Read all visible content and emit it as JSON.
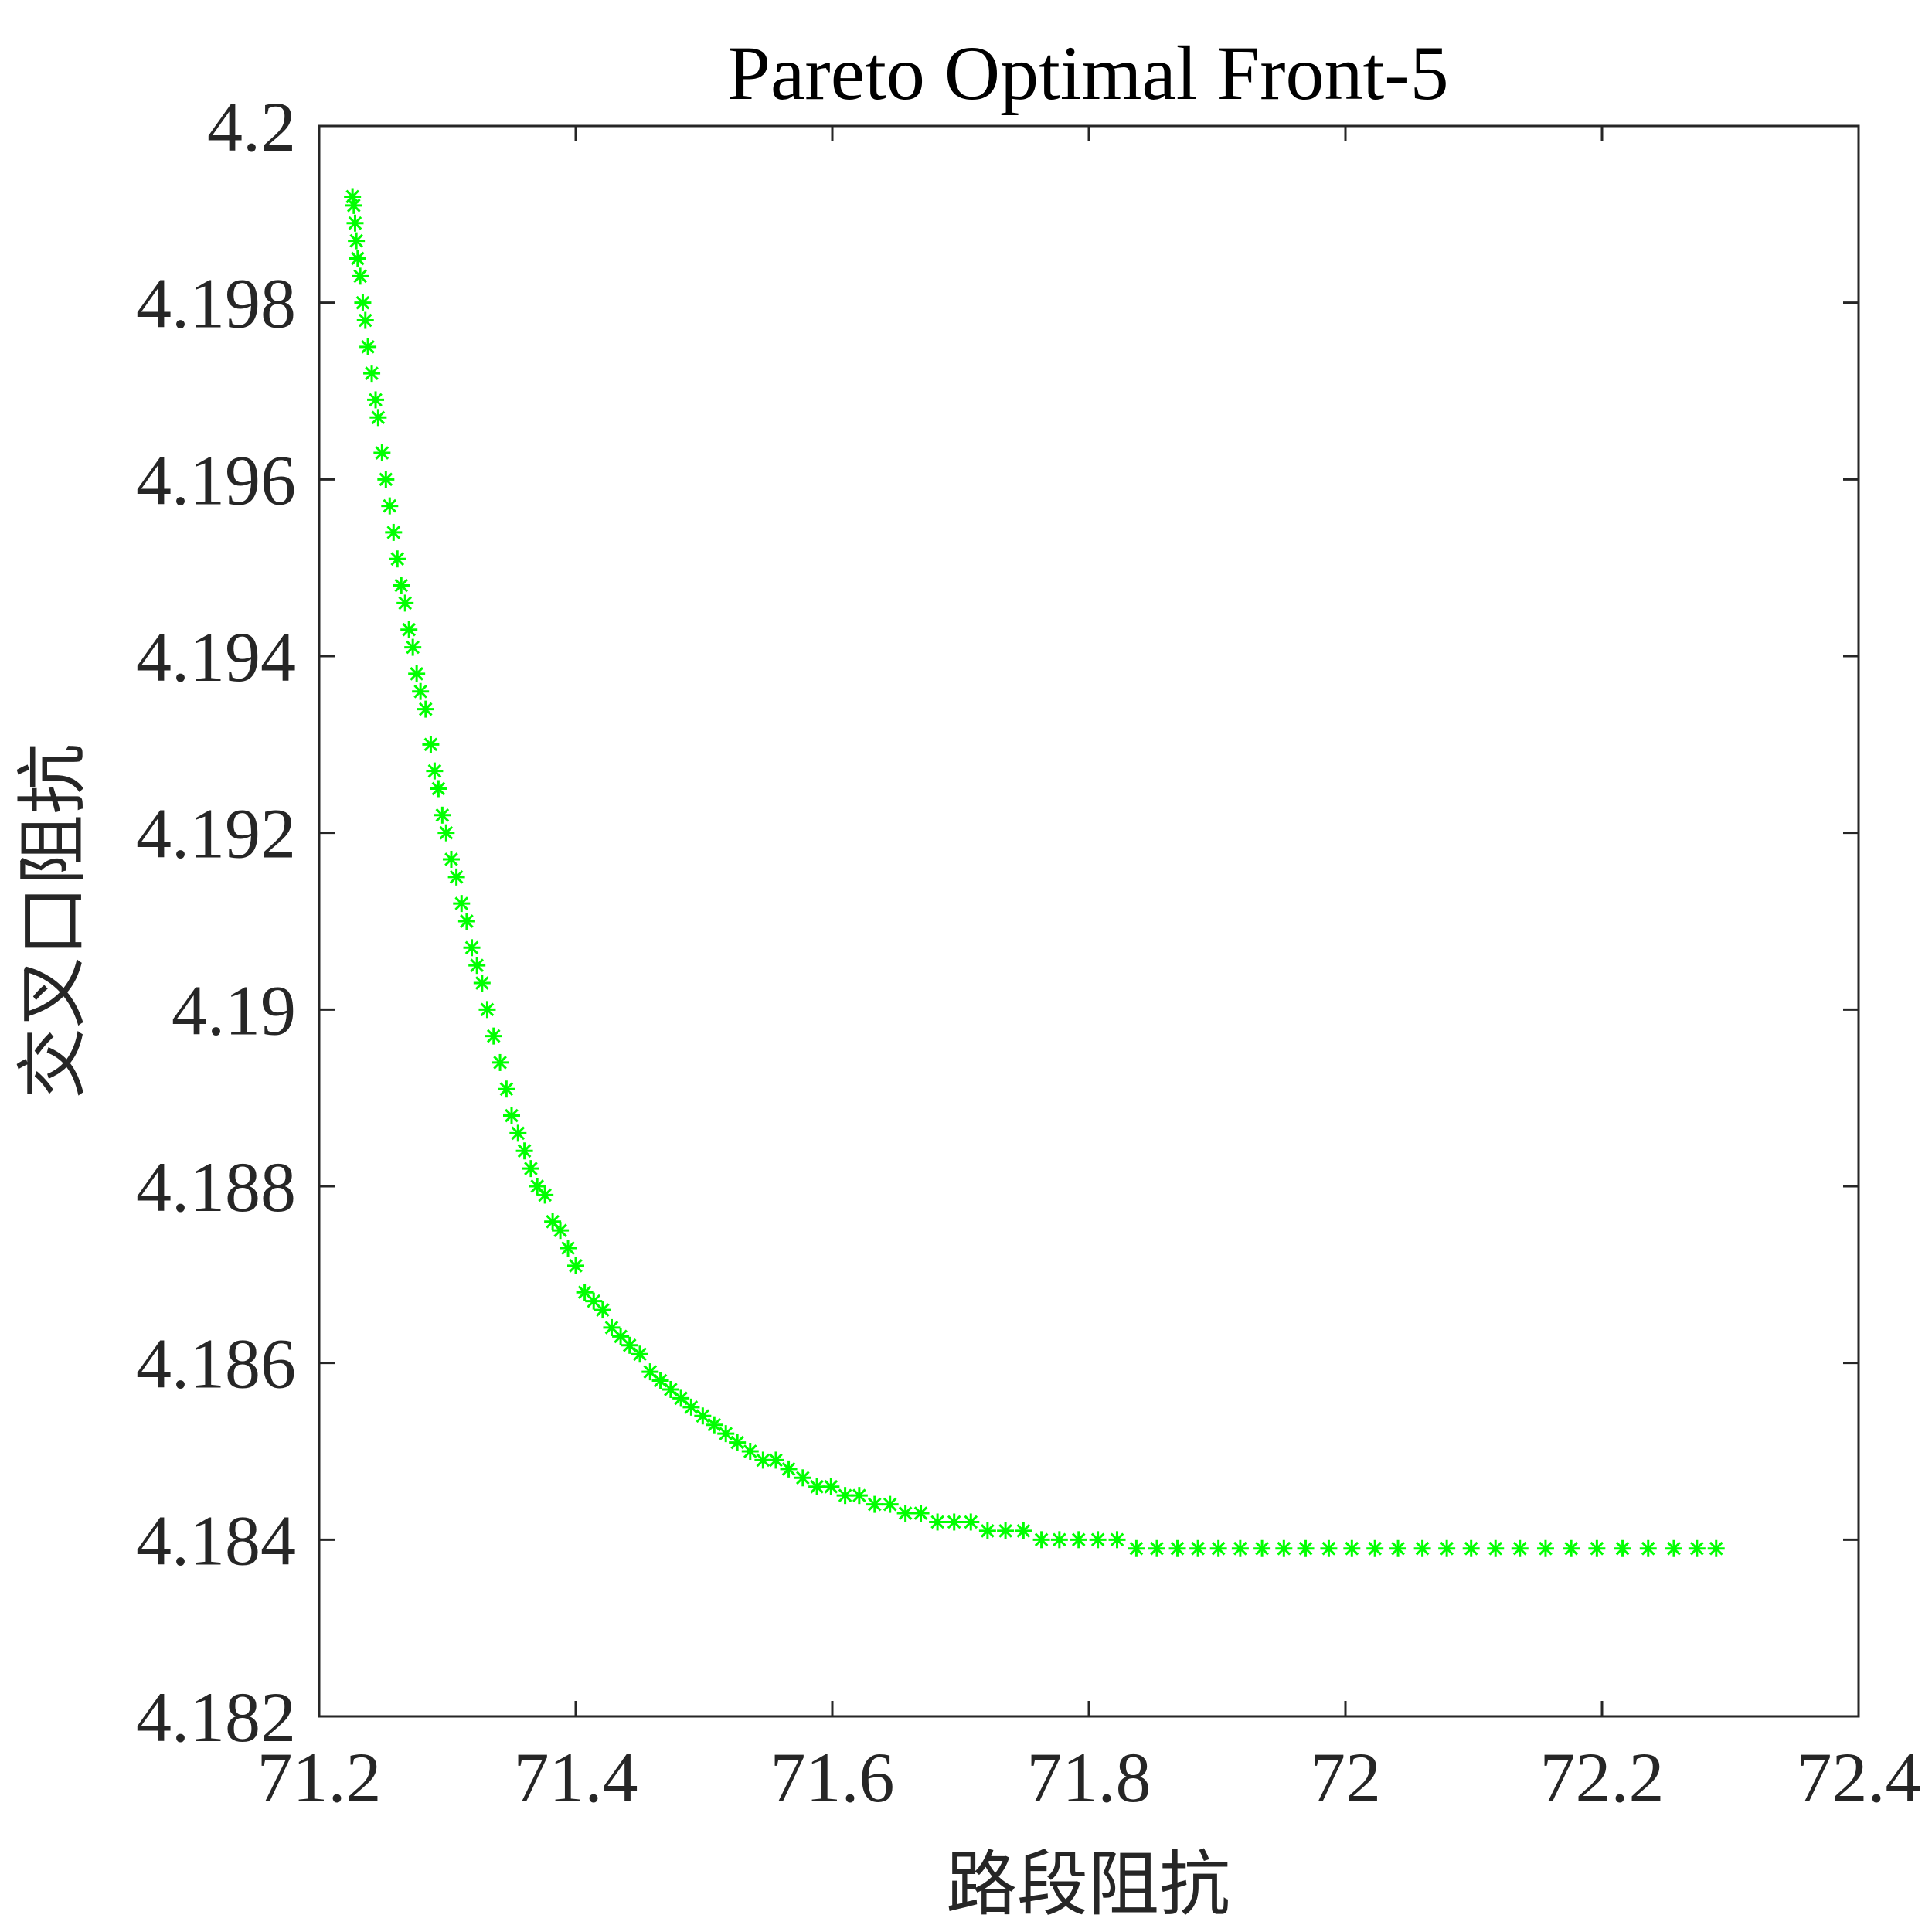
{
  "chart_data": {
    "type": "scatter",
    "title": "Pareto Optimal Front-5",
    "xlabel": "路段阻抗",
    "ylabel": "交叉口阻抗",
    "xlim": [
      71.2,
      72.4
    ],
    "ylim": [
      4.182,
      4.2
    ],
    "xticks": [
      "71.2",
      "71.4",
      "71.6",
      "71.8",
      "72",
      "72.2",
      "72.4"
    ],
    "yticks": [
      "4.182",
      "4.184",
      "4.186",
      "4.188",
      "4.19",
      "4.192",
      "4.194",
      "4.196",
      "4.198",
      "4.2"
    ],
    "grid": false,
    "marker": "asterisk",
    "colors": {
      "marker": "#00ff00",
      "axis": "#262626",
      "background": "#ffffff"
    },
    "series": [
      {
        "points": [
          [
            71.226,
            4.1992
          ],
          [
            71.227,
            4.1991
          ],
          [
            71.228,
            4.1989
          ],
          [
            71.229,
            4.1987
          ],
          [
            71.23,
            4.1985
          ],
          [
            71.232,
            4.1983
          ],
          [
            71.234,
            4.198
          ],
          [
            71.236,
            4.1978
          ],
          [
            71.238,
            4.1975
          ],
          [
            71.241,
            4.1972
          ],
          [
            71.244,
            4.1969
          ],
          [
            71.246,
            4.1967
          ],
          [
            71.249,
            4.1963
          ],
          [
            71.252,
            4.196
          ],
          [
            71.255,
            4.1957
          ],
          [
            71.258,
            4.1954
          ],
          [
            71.261,
            4.1951
          ],
          [
            71.264,
            4.1948
          ],
          [
            71.267,
            4.1946
          ],
          [
            71.27,
            4.1943
          ],
          [
            71.273,
            4.1941
          ],
          [
            71.276,
            4.1938
          ],
          [
            71.279,
            4.1936
          ],
          [
            71.283,
            4.1934
          ],
          [
            71.287,
            4.193
          ],
          [
            71.29,
            4.1927
          ],
          [
            71.293,
            4.1925
          ],
          [
            71.296,
            4.1922
          ],
          [
            71.299,
            4.192
          ],
          [
            71.303,
            4.1917
          ],
          [
            71.307,
            4.1915
          ],
          [
            71.311,
            4.1912
          ],
          [
            71.315,
            4.191
          ],
          [
            71.319,
            4.1907
          ],
          [
            71.323,
            4.1905
          ],
          [
            71.327,
            4.1903
          ],
          [
            71.331,
            4.19
          ],
          [
            71.336,
            4.1897
          ],
          [
            71.341,
            4.1894
          ],
          [
            71.346,
            4.1891
          ],
          [
            71.35,
            4.1888
          ],
          [
            71.355,
            4.1886
          ],
          [
            71.36,
            4.1884
          ],
          [
            71.365,
            4.1882
          ],
          [
            71.37,
            4.188
          ],
          [
            71.376,
            4.1879
          ],
          [
            71.382,
            4.1876
          ],
          [
            71.388,
            4.1875
          ],
          [
            71.394,
            4.1873
          ],
          [
            71.4,
            4.1871
          ],
          [
            71.407,
            4.1868
          ],
          [
            71.414,
            4.1867
          ],
          [
            71.421,
            4.1866
          ],
          [
            71.428,
            4.1864
          ],
          [
            71.435,
            4.1863
          ],
          [
            71.442,
            4.1862
          ],
          [
            71.45,
            4.1861
          ],
          [
            71.458,
            4.1859
          ],
          [
            71.466,
            4.1858
          ],
          [
            71.474,
            4.1857
          ],
          [
            71.482,
            4.1856
          ],
          [
            71.49,
            4.1855
          ],
          [
            71.499,
            4.1854
          ],
          [
            71.508,
            4.1853
          ],
          [
            71.517,
            4.1852
          ],
          [
            71.526,
            4.1851
          ],
          [
            71.536,
            4.185
          ],
          [
            71.546,
            4.1849
          ],
          [
            71.556,
            4.1849
          ],
          [
            71.566,
            4.1848
          ],
          [
            71.577,
            4.1847
          ],
          [
            71.588,
            4.1846
          ],
          [
            71.599,
            4.1846
          ],
          [
            71.61,
            4.1845
          ],
          [
            71.621,
            4.1845
          ],
          [
            71.633,
            4.1844
          ],
          [
            71.645,
            4.1844
          ],
          [
            71.657,
            4.1843
          ],
          [
            71.669,
            4.1843
          ],
          [
            71.682,
            4.1842
          ],
          [
            71.695,
            4.1842
          ],
          [
            71.708,
            4.1842
          ],
          [
            71.721,
            4.1841
          ],
          [
            71.735,
            4.1841
          ],
          [
            71.749,
            4.1841
          ],
          [
            71.763,
            4.184
          ],
          [
            71.777,
            4.184
          ],
          [
            71.792,
            4.184
          ],
          [
            71.807,
            4.184
          ],
          [
            71.822,
            4.184
          ],
          [
            71.837,
            4.1839
          ],
          [
            71.853,
            4.1839
          ],
          [
            71.869,
            4.1839
          ],
          [
            71.885,
            4.1839
          ],
          [
            71.901,
            4.1839
          ],
          [
            71.918,
            4.1839
          ],
          [
            71.935,
            4.1839
          ],
          [
            71.952,
            4.1839
          ],
          [
            71.969,
            4.1839
          ],
          [
            71.987,
            4.1839
          ],
          [
            72.005,
            4.1839
          ],
          [
            72.023,
            4.1839
          ],
          [
            72.041,
            4.1839
          ],
          [
            72.06,
            4.1839
          ],
          [
            72.079,
            4.1839
          ],
          [
            72.098,
            4.1839
          ],
          [
            72.117,
            4.1839
          ],
          [
            72.136,
            4.1839
          ],
          [
            72.156,
            4.1839
          ],
          [
            72.176,
            4.1839
          ],
          [
            72.196,
            4.1839
          ],
          [
            72.216,
            4.1839
          ],
          [
            72.236,
            4.1839
          ],
          [
            72.256,
            4.1839
          ],
          [
            72.274,
            4.1839
          ],
          [
            72.289,
            4.1839
          ]
        ]
      }
    ]
  }
}
